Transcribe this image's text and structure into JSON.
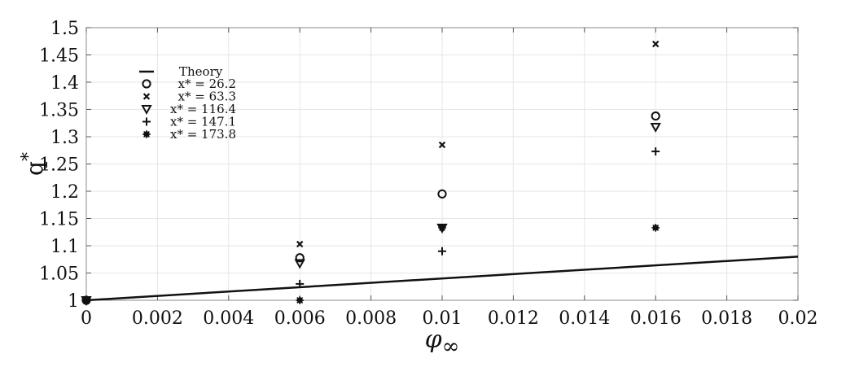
{
  "chart_data": {
    "type": "scatter",
    "xlabel": "φ∞",
    "xlabel_main": "φ",
    "xlabel_sub": "∞",
    "ylabel": "q*",
    "ylabel_main": "q",
    "ylabel_sup": "*",
    "xlim": [
      0,
      0.02
    ],
    "ylim": [
      1,
      1.5
    ],
    "grid": true,
    "legend_position": "top-left",
    "xticks": [
      0,
      0.002,
      0.004,
      0.006,
      0.008,
      0.01,
      0.012,
      0.014,
      0.016,
      0.018,
      0.02
    ],
    "xtick_labels": [
      "0",
      "0.002",
      "0.004",
      "0.006",
      "0.008",
      "0.01",
      "0.012",
      "0.014",
      "0.016",
      "0.018",
      "0.02"
    ],
    "yticks": [
      1,
      1.05,
      1.1,
      1.15,
      1.2,
      1.25,
      1.3,
      1.35,
      1.4,
      1.45,
      1.5
    ],
    "ytick_labels": [
      "1",
      "1.05",
      "1.1",
      "1.15",
      "1.2",
      "1.25",
      "1.3",
      "1.35",
      "1.4",
      "1.45",
      "1.5"
    ],
    "theory_line": {
      "name": "Theory",
      "x": [
        0,
        0.02
      ],
      "y": [
        1.0,
        1.08
      ]
    },
    "series": [
      {
        "name": "x* = 26.2",
        "marker": "circle",
        "x": [
          0,
          0.006,
          0.01,
          0.016
        ],
        "y": [
          1.0,
          1.078,
          1.195,
          1.338
        ]
      },
      {
        "name": "x* = 63.3",
        "marker": "x",
        "x": [
          0,
          0.006,
          0.01,
          0.016
        ],
        "y": [
          1.0,
          1.103,
          1.285,
          1.47
        ]
      },
      {
        "name": "x* = 116.4",
        "marker": "triangle-down",
        "x": [
          0,
          0.006,
          0.01,
          0.016
        ],
        "y": [
          1.0,
          1.068,
          1.133,
          1.318
        ]
      },
      {
        "name": "x* = 147.1",
        "marker": "plus",
        "x": [
          0,
          0.006,
          0.01,
          0.016
        ],
        "y": [
          1.0,
          1.03,
          1.09,
          1.273
        ]
      },
      {
        "name": "x* = 173.8",
        "marker": "star",
        "x": [
          0,
          0.006,
          0.01,
          0.016
        ],
        "y": [
          1.0,
          1.0,
          1.133,
          1.133
        ]
      }
    ]
  }
}
